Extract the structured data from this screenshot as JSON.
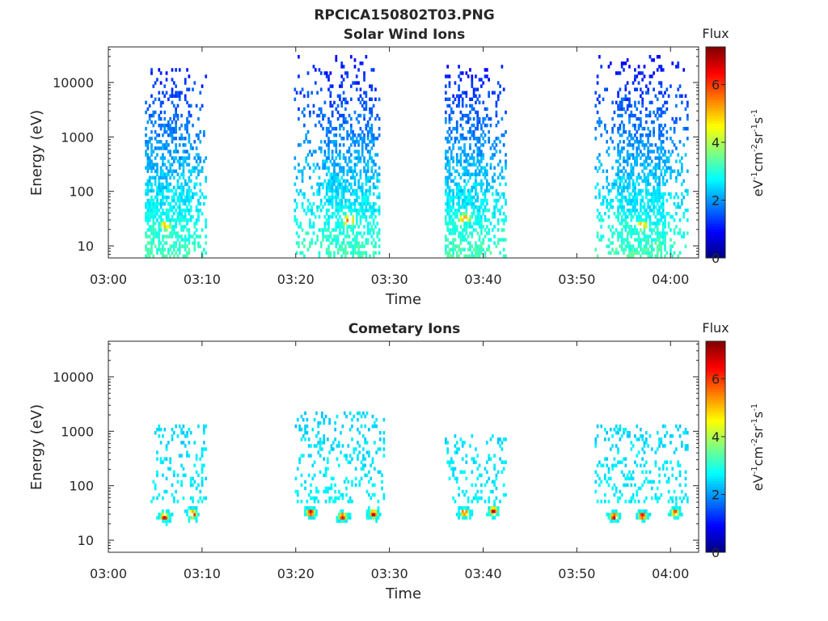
{
  "figure": {
    "title": "RPCICA150802T03.PNG"
  },
  "chart_data": [
    {
      "type": "heatmap",
      "title": "Solar Wind Ions",
      "xlabel": "Time",
      "ylabel": "Energy (eV)",
      "x_ticks": [
        "03:00",
        "03:10",
        "03:20",
        "03:30",
        "03:40",
        "03:50",
        "04:00"
      ],
      "x_tick_minutes": [
        0,
        10,
        20,
        30,
        40,
        50,
        60
      ],
      "xlim_minutes": [
        0,
        63
      ],
      "y_scale": "log",
      "y_ticks": [
        "10",
        "100",
        "1000",
        "10000"
      ],
      "y_tick_values": [
        10,
        100,
        1000,
        10000
      ],
      "ylim": [
        6,
        45000
      ],
      "colorbar": {
        "label": "Flux",
        "units": "eV-1 cm-2 sr-1 s-1",
        "ticks": [
          "0",
          "2",
          "4",
          "6"
        ],
        "range": [
          0,
          7.3
        ],
        "colormap": "jet"
      },
      "bursts": [
        {
          "t_start": 3.9,
          "t_end": 10.3,
          "peak_t": 6.0,
          "peak_energy": 22,
          "peak_flux": 5.1,
          "emax": 18000
        },
        {
          "t_start": 19.8,
          "t_end": 28.8,
          "peak_t": 25.6,
          "peak_energy": 27,
          "peak_flux": 5.6,
          "emax": 28000
        },
        {
          "t_start": 35.9,
          "t_end": 42.4,
          "peak_t": 37.9,
          "peak_energy": 30,
          "peak_flux": 5.3,
          "emax": 20000
        },
        {
          "t_start": 51.9,
          "t_end": 61.8,
          "peak_t": 56.9,
          "peak_energy": 22,
          "peak_flux": 5.2,
          "emax": 31000
        }
      ]
    },
    {
      "type": "heatmap",
      "title": "Cometary Ions",
      "xlabel": "Time",
      "ylabel": "Energy (eV)",
      "x_ticks": [
        "03:00",
        "03:10",
        "03:20",
        "03:30",
        "03:40",
        "03:50",
        "04:00"
      ],
      "x_tick_minutes": [
        0,
        10,
        20,
        30,
        40,
        50,
        60
      ],
      "xlim_minutes": [
        0,
        63
      ],
      "y_scale": "log",
      "y_ticks": [
        "10",
        "100",
        "1000",
        "10000"
      ],
      "y_tick_values": [
        10,
        100,
        1000,
        10000
      ],
      "ylim": [
        6,
        45000
      ],
      "colorbar": {
        "label": "Flux",
        "units": "eV-1 cm-2 sr-1 s-1",
        "ticks": [
          "0",
          "2",
          "4",
          "6"
        ],
        "range": [
          0,
          7.3
        ],
        "colormap": "jet"
      },
      "bursts": [
        {
          "t_start": 4.5,
          "t_end": 10.3,
          "peaks": [
            {
              "t": 5.9,
              "energy": 25,
              "flux": 6.8
            },
            {
              "t": 8.9,
              "energy": 28,
              "flux": 7.0
            }
          ],
          "emax": 1200
        },
        {
          "t_start": 19.9,
          "t_end": 29.3,
          "peaks": [
            {
              "t": 21.5,
              "energy": 30,
              "flux": 7.0
            },
            {
              "t": 24.9,
              "energy": 25,
              "flux": 6.8
            },
            {
              "t": 28.2,
              "energy": 28,
              "flux": 7.0
            }
          ],
          "emax": 2200
        },
        {
          "t_start": 35.9,
          "t_end": 42.4,
          "peaks": [
            {
              "t": 37.9,
              "energy": 30,
              "flux": 6.5
            },
            {
              "t": 41.0,
              "energy": 32,
              "flux": 7.1
            }
          ],
          "emax": 800
        },
        {
          "t_start": 51.9,
          "t_end": 61.8,
          "peaks": [
            {
              "t": 53.9,
              "energy": 25,
              "flux": 7.0
            },
            {
              "t": 56.9,
              "energy": 26,
              "flux": 6.8
            },
            {
              "t": 60.4,
              "energy": 30,
              "flux": 6.2
            }
          ],
          "emax": 1200
        }
      ]
    }
  ]
}
